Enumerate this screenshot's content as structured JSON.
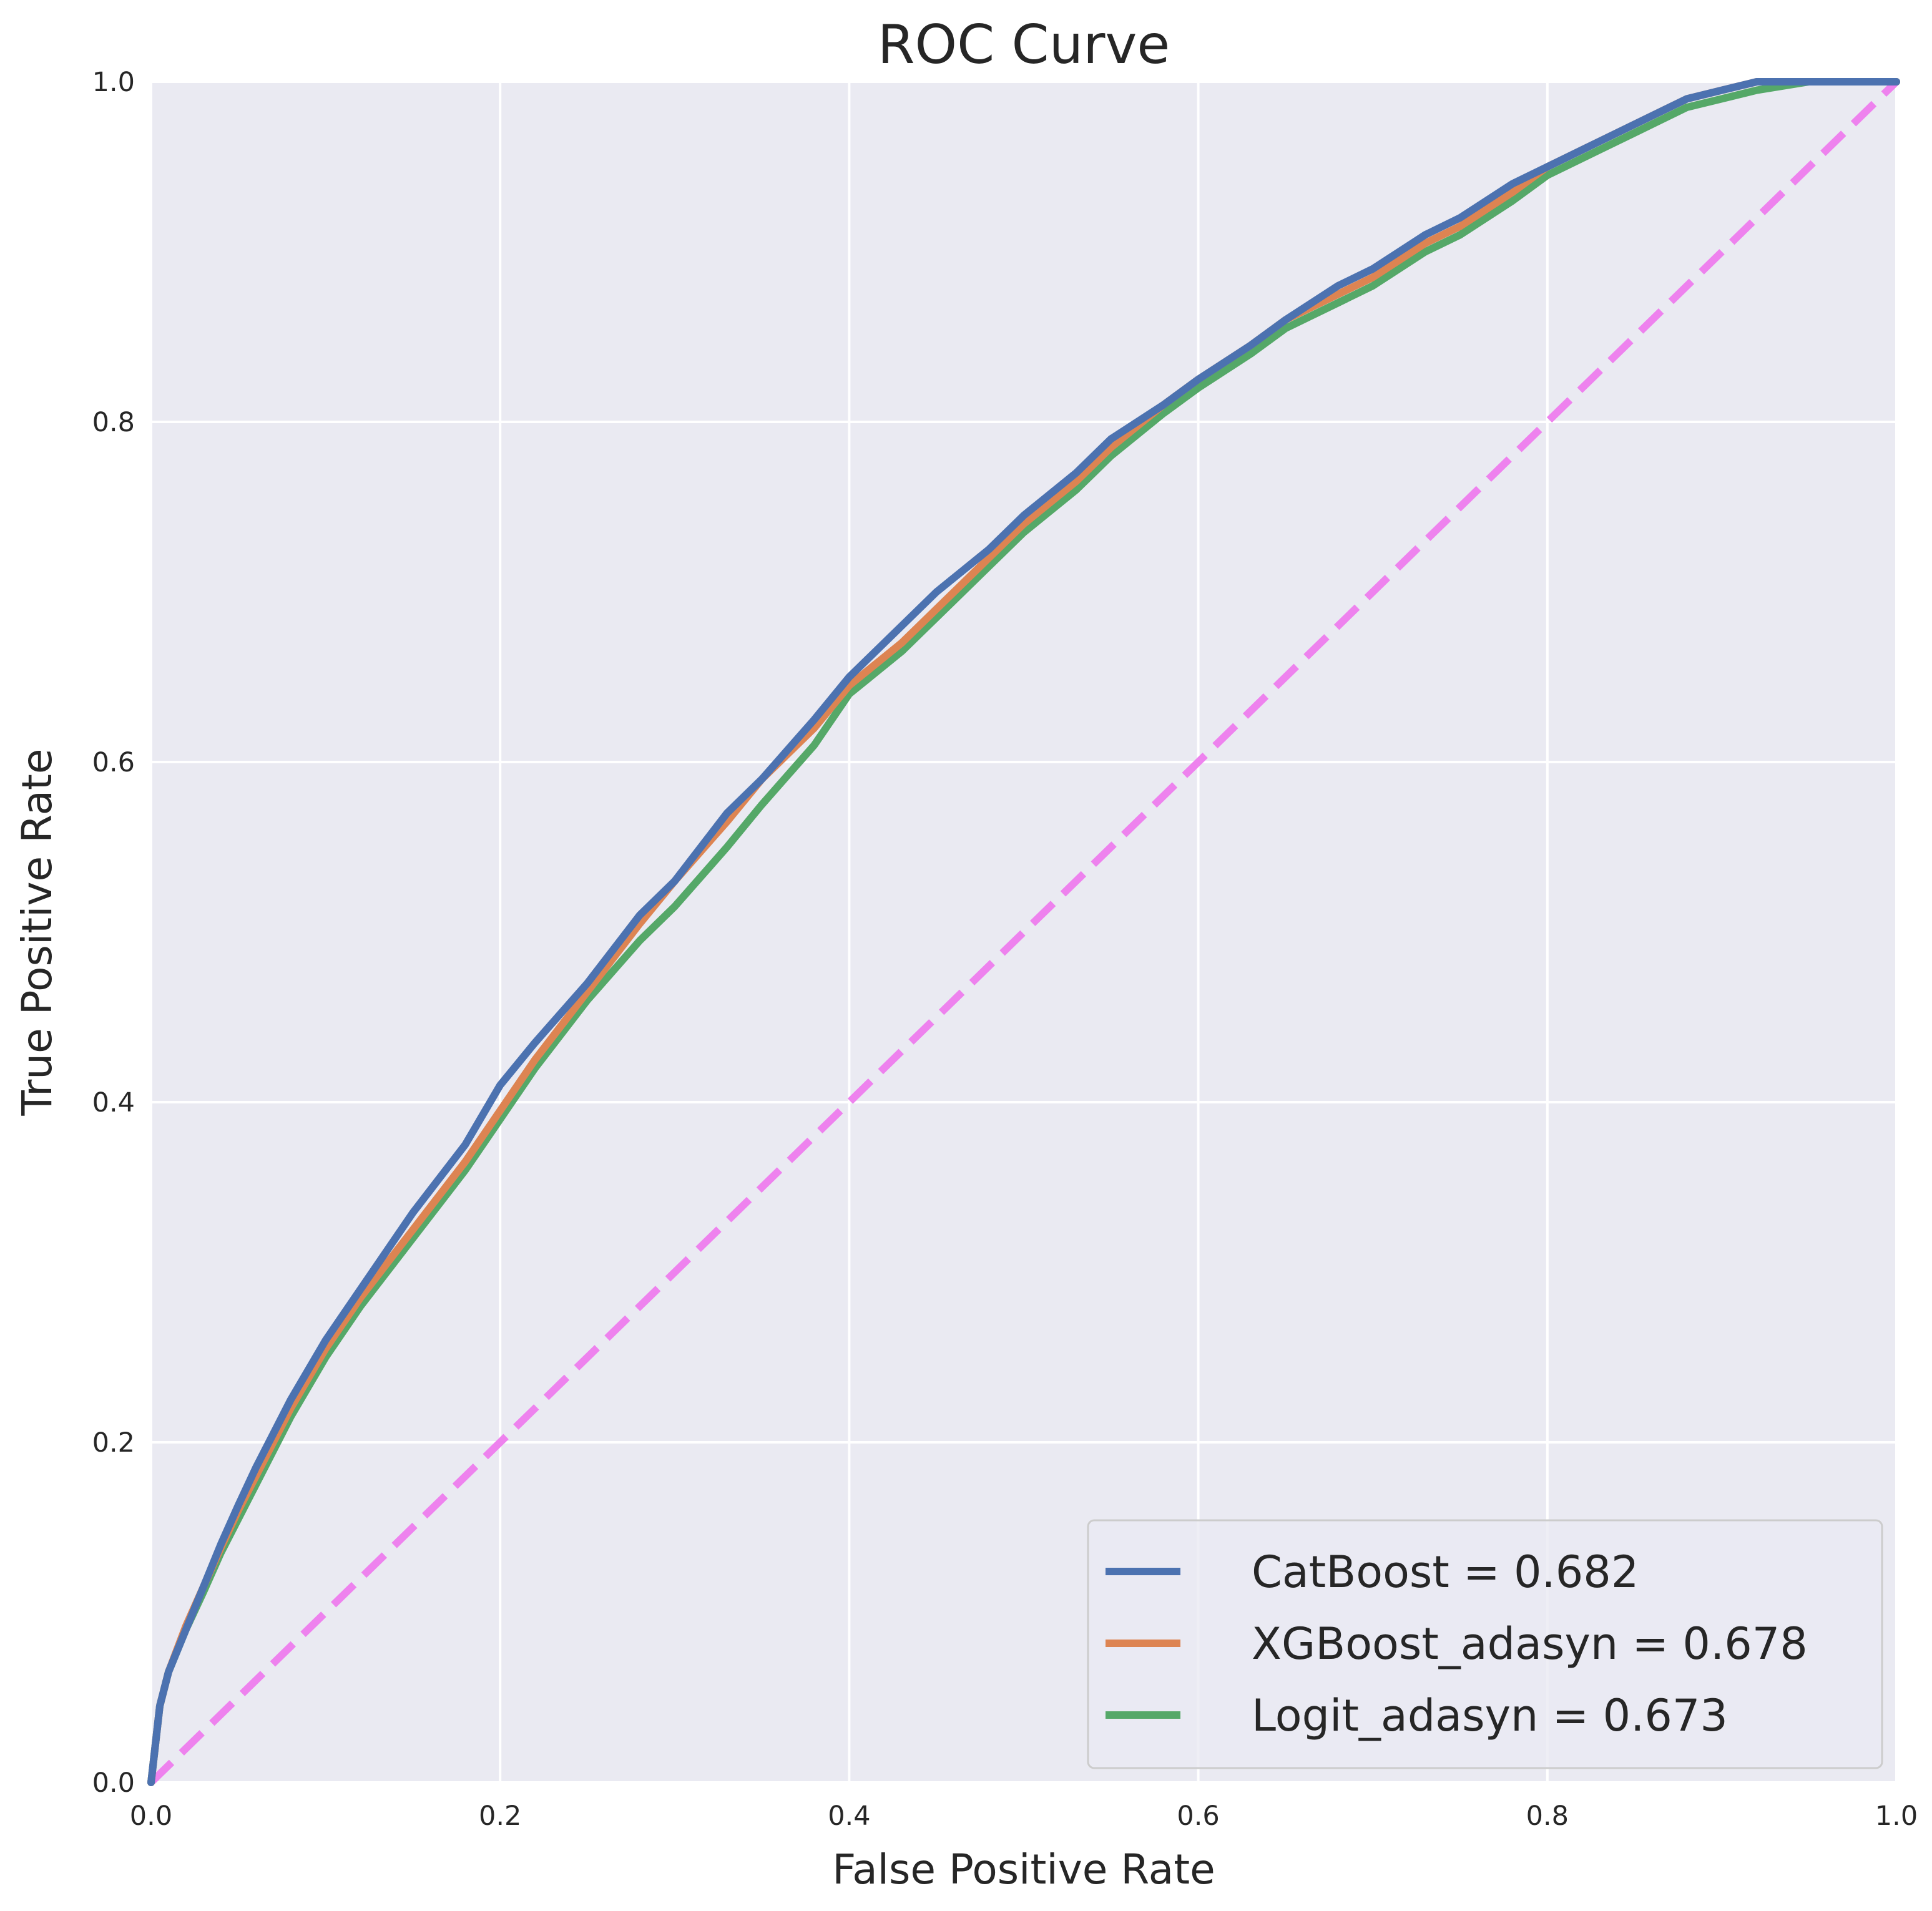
{
  "chart_data": {
    "type": "line",
    "title": "ROC Curve",
    "xlabel": "False Positive Rate",
    "ylabel": "True Positive Rate",
    "xlim": [
      0,
      1
    ],
    "ylim": [
      0,
      1
    ],
    "grid": true,
    "legend_position": "lower-right",
    "x_ticks": [
      "0.0",
      "0.2",
      "0.4",
      "0.6",
      "0.8",
      "1.0"
    ],
    "y_ticks": [
      "0.0",
      "0.2",
      "0.4",
      "0.6",
      "0.8",
      "1.0"
    ],
    "series": [
      {
        "name": "CatBoost = 0.682",
        "color": "#4c72b0",
        "x": [
          0,
          0.005,
          0.01,
          0.02,
          0.03,
          0.04,
          0.05,
          0.06,
          0.08,
          0.1,
          0.12,
          0.15,
          0.18,
          0.2,
          0.22,
          0.25,
          0.28,
          0.3,
          0.33,
          0.35,
          0.38,
          0.4,
          0.43,
          0.45,
          0.48,
          0.5,
          0.53,
          0.55,
          0.58,
          0.6,
          0.63,
          0.65,
          0.68,
          0.7,
          0.73,
          0.75,
          0.78,
          0.8,
          0.83,
          0.85,
          0.88,
          0.9,
          0.92,
          0.95,
          1.0
        ],
        "y": [
          0,
          0.045,
          0.065,
          0.09,
          0.115,
          0.14,
          0.163,
          0.185,
          0.225,
          0.26,
          0.29,
          0.335,
          0.375,
          0.41,
          0.435,
          0.47,
          0.51,
          0.53,
          0.57,
          0.59,
          0.625,
          0.65,
          0.68,
          0.7,
          0.725,
          0.745,
          0.77,
          0.79,
          0.81,
          0.825,
          0.845,
          0.86,
          0.88,
          0.89,
          0.91,
          0.92,
          0.94,
          0.95,
          0.965,
          0.975,
          0.99,
          0.995,
          1.0,
          1.0,
          1.0
        ]
      },
      {
        "name": "XGBoost_adasyn = 0.678",
        "color": "#dd8452",
        "x": [
          0,
          0.005,
          0.01,
          0.02,
          0.03,
          0.04,
          0.05,
          0.06,
          0.08,
          0.1,
          0.12,
          0.15,
          0.18,
          0.2,
          0.22,
          0.25,
          0.28,
          0.3,
          0.33,
          0.35,
          0.38,
          0.4,
          0.43,
          0.45,
          0.48,
          0.5,
          0.53,
          0.55,
          0.58,
          0.6,
          0.63,
          0.65,
          0.68,
          0.7,
          0.73,
          0.75,
          0.78,
          0.8,
          0.83,
          0.85,
          0.88,
          0.9,
          0.92,
          0.95,
          1.0
        ],
        "y": [
          0,
          0.045,
          0.065,
          0.092,
          0.115,
          0.138,
          0.16,
          0.18,
          0.22,
          0.255,
          0.285,
          0.325,
          0.365,
          0.395,
          0.425,
          0.465,
          0.505,
          0.53,
          0.565,
          0.59,
          0.62,
          0.645,
          0.67,
          0.69,
          0.72,
          0.74,
          0.765,
          0.785,
          0.81,
          0.825,
          0.845,
          0.86,
          0.875,
          0.885,
          0.905,
          0.915,
          0.935,
          0.95,
          0.965,
          0.975,
          0.99,
          0.995,
          1.0,
          1.0,
          1.0
        ]
      },
      {
        "name": "Logit_adasyn = 0.673",
        "color": "#55a868",
        "x": [
          0,
          0.005,
          0.01,
          0.02,
          0.03,
          0.04,
          0.05,
          0.06,
          0.08,
          0.1,
          0.12,
          0.15,
          0.18,
          0.2,
          0.22,
          0.25,
          0.28,
          0.3,
          0.33,
          0.35,
          0.38,
          0.4,
          0.43,
          0.45,
          0.48,
          0.5,
          0.53,
          0.55,
          0.58,
          0.6,
          0.63,
          0.65,
          0.68,
          0.7,
          0.73,
          0.75,
          0.78,
          0.8,
          0.83,
          0.85,
          0.88,
          0.9,
          0.92,
          0.95,
          1.0
        ],
        "y": [
          0,
          0.045,
          0.065,
          0.09,
          0.112,
          0.135,
          0.155,
          0.175,
          0.215,
          0.25,
          0.28,
          0.32,
          0.36,
          0.39,
          0.42,
          0.46,
          0.495,
          0.515,
          0.55,
          0.575,
          0.61,
          0.64,
          0.665,
          0.685,
          0.715,
          0.735,
          0.76,
          0.78,
          0.805,
          0.82,
          0.84,
          0.855,
          0.87,
          0.88,
          0.9,
          0.91,
          0.93,
          0.945,
          0.96,
          0.97,
          0.985,
          0.99,
          0.995,
          1.0,
          1.0
        ]
      }
    ],
    "reference_line": {
      "color": "#ee82ee",
      "style": "dashed",
      "x": [
        0,
        1
      ],
      "y": [
        0,
        1
      ]
    },
    "background_color": "#eaeaf2",
    "grid_color": "#ffffff"
  }
}
